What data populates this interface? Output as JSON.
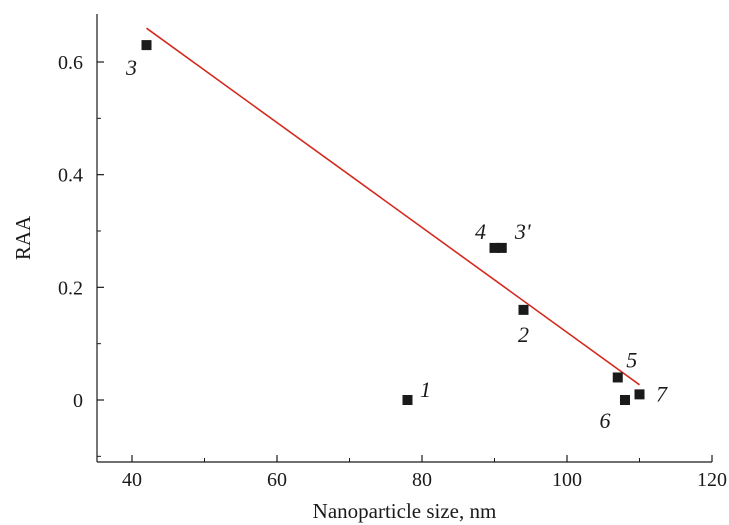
{
  "chart_data": {
    "type": "scatter",
    "title": "",
    "xlabel": "Nanoparticle size, nm",
    "ylabel": "RAA",
    "xlim": [
      35,
      120
    ],
    "ylim": [
      -0.11,
      0.68
    ],
    "x_ticks": [
      40,
      60,
      80,
      100,
      120
    ],
    "y_ticks": [
      0,
      0.2,
      0.4,
      0.6
    ],
    "x_tick_labels": [
      "40",
      "60",
      "80",
      "100",
      "120"
    ],
    "y_tick_labels": [
      "0",
      "0.2",
      "0.4",
      "0.6"
    ],
    "grid": false,
    "legend": "none",
    "points": [
      {
        "label": "1",
        "x": 78,
        "y": 0.0
      },
      {
        "label": "2",
        "x": 94,
        "y": 0.16
      },
      {
        "label": "3",
        "x": 42,
        "y": 0.63
      },
      {
        "label": "3'",
        "x": 91,
        "y": 0.27
      },
      {
        "label": "4",
        "x": 90,
        "y": 0.27
      },
      {
        "label": "5",
        "x": 107,
        "y": 0.04
      },
      {
        "label": "6",
        "x": 108,
        "y": 0.0
      },
      {
        "label": "7",
        "x": 110,
        "y": 0.01
      }
    ],
    "trendline": {
      "x": [
        42,
        110
      ],
      "y": [
        0.66,
        0.027
      ]
    },
    "colors": {
      "points": "#1a1a1a",
      "trendline": "#d42a1e",
      "axes": "#1a1a1a"
    }
  }
}
